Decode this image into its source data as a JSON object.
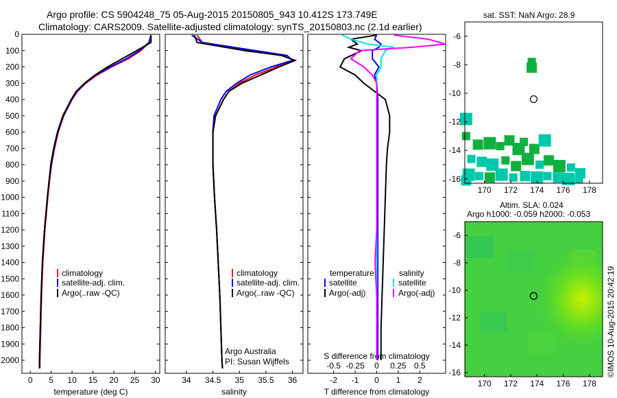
{
  "header": {
    "line1": "Argo profile: CS 5904248_75 05-Aug-2015 20150805_943 10.412S 173.749E",
    "line2": "Climatology: CARS2009. Satellite-adjusted climatology: synTS_20150803.nc (2.1d earlier)"
  },
  "colors": {
    "climatology": "#ff0000",
    "satellite": "#0000ff",
    "argo": "#000000",
    "sal_satellite": "#00e5ee",
    "sal_argo": "#ff00ff",
    "sst_teal": "#00c8aa",
    "sst_green": "#10b040",
    "sla_green": "#44d040"
  },
  "legend_temp": [
    "climatology",
    "satellite-adj. clim.",
    "Argo(..raw -QC)"
  ],
  "legend_sal": [
    "climatology",
    "satellite-adj. clim.",
    "Argo(..raw -QC)"
  ],
  "legend_diff": {
    "temp_head": "temperature",
    "sal_head": "salinity",
    "temp_items": [
      "satellite",
      "Argo(-adj)"
    ],
    "sal_items": [
      "satellite",
      "Argo(-adj)"
    ]
  },
  "credit": {
    "line1": "Argo Australia",
    "line2": "PI: Susan Wijffels"
  },
  "sst_title": "sat. SST: NaN Argo: 28.9",
  "sla_title1": "Altim. SLA: 0.024",
  "sla_title2": "Argo h1000: -0.059 h2000: -0.053",
  "copyright": "©IMOS 10-Aug-2015 20:42:19",
  "chart_data": [
    {
      "type": "line",
      "xlabel": "temperature (deg C)",
      "ylabel": "",
      "xlim": [
        -2,
        31
      ],
      "ylim": [
        2080,
        0
      ],
      "xticks": [
        "0",
        "5",
        "10",
        "15",
        "20",
        "25",
        "30"
      ],
      "yticks": [
        "0",
        "100",
        "200",
        "300",
        "400",
        "500",
        "600",
        "700",
        "800",
        "900",
        "1000",
        "1100",
        "1200",
        "1300",
        "1400",
        "1500",
        "1600",
        "1700",
        "1800",
        "1900",
        "2000"
      ],
      "depth": [
        5,
        50,
        100,
        150,
        200,
        250,
        300,
        350,
        400,
        500,
        600,
        700,
        800,
        900,
        1000,
        1200,
        1400,
        1600,
        1800,
        2000,
        2050
      ],
      "series": [
        {
          "name": "climatology",
          "values": [
            28.9,
            28.5,
            26.5,
            23.5,
            19.5,
            16.0,
            13.3,
            11.3,
            10.0,
            8.0,
            6.7,
            5.8,
            5.1,
            4.6,
            4.2,
            3.5,
            3.0,
            2.7,
            2.5,
            2.3,
            2.3
          ]
        },
        {
          "name": "satellite-adj. clim.",
          "values": [
            28.9,
            28.4,
            26.2,
            23.0,
            19.2,
            15.7,
            13.1,
            11.2,
            9.9,
            7.9,
            6.6,
            5.7,
            5.0,
            4.5,
            4.1,
            3.4,
            2.9,
            2.6,
            2.4,
            2.2,
            2.2
          ]
        },
        {
          "name": "Argo(..raw -QC)",
          "values": [
            28.9,
            28.9,
            25.5,
            22.0,
            18.5,
            15.5,
            13.0,
            11.0,
            9.8,
            7.8,
            6.5,
            5.6,
            4.9,
            4.5,
            4.1,
            3.4,
            2.9,
            2.6,
            2.4,
            2.2,
            2.2
          ]
        }
      ]
    },
    {
      "type": "line",
      "xlabel": "salinity",
      "xlim": [
        33.6,
        36.2
      ],
      "ylim": [
        2080,
        0
      ],
      "xticks": [
        "34",
        "34.5",
        "35",
        "35.5",
        "36"
      ],
      "depth": [
        5,
        50,
        100,
        130,
        160,
        200,
        250,
        300,
        350,
        400,
        500,
        600,
        700,
        800,
        1000,
        1200,
        1400,
        1600,
        1800,
        2000,
        2050
      ],
      "series": [
        {
          "name": "climatology",
          "values": [
            34.2,
            34.3,
            35.2,
            35.8,
            36.05,
            35.7,
            35.3,
            35.0,
            34.8,
            34.7,
            34.55,
            34.5,
            34.5,
            34.5,
            34.53,
            34.57,
            34.6,
            34.63,
            34.65,
            34.67,
            34.68
          ]
        },
        {
          "name": "satellite-adj. clim.",
          "values": [
            34.1,
            34.3,
            35.3,
            35.9,
            36.0,
            35.6,
            35.2,
            34.95,
            34.75,
            34.65,
            34.52,
            34.5,
            34.5,
            34.5,
            34.53,
            34.57,
            34.6,
            34.63,
            34.65,
            34.67,
            34.68
          ]
        },
        {
          "name": "Argo(..raw -QC)",
          "values": [
            34.15,
            34.2,
            35.1,
            35.8,
            36.05,
            35.75,
            35.4,
            35.05,
            34.8,
            34.7,
            34.55,
            34.5,
            34.5,
            34.5,
            34.53,
            34.57,
            34.6,
            34.63,
            34.65,
            34.67,
            34.68
          ]
        }
      ]
    },
    {
      "type": "line",
      "xlabel": "T difference from climatology",
      "toplabel": "S difference from climatology",
      "xlim": [
        -3.2,
        3.2
      ],
      "ylim": [
        2080,
        0
      ],
      "xticks": [
        "-2",
        "-1",
        "0",
        "1",
        "2"
      ],
      "sticks": [
        "-0.5",
        "-0.25",
        "0",
        "0.25",
        "0.5"
      ],
      "depth": [
        5,
        30,
        60,
        80,
        100,
        150,
        200,
        250,
        300,
        400,
        500,
        600,
        700,
        800,
        1000,
        1200,
        1400,
        1600,
        1800,
        2000
      ],
      "series": [
        {
          "name": "temperature satellite",
          "values": [
            0.0,
            -0.1,
            0.2,
            0.1,
            -0.2,
            -0.2,
            0.1,
            -0.1,
            0.0,
            0.05,
            0.05,
            0.05,
            0.05,
            0.05,
            0.05,
            0.05,
            0.05,
            0.05,
            0.05,
            0.05
          ]
        },
        {
          "name": "temperature Argo(-adj)",
          "values": [
            0.0,
            -1.2,
            -0.9,
            -1.3,
            -0.7,
            -1.5,
            -1.7,
            -1.0,
            -0.6,
            0.4,
            0.6,
            0.6,
            0.5,
            0.45,
            0.4,
            0.35,
            0.3,
            0.25,
            0.2,
            0.2
          ]
        },
        {
          "name": "salinity satellite",
          "values": [
            -0.4,
            -0.3,
            -0.1,
            0.2,
            0.1,
            0.05,
            0.05,
            0.0,
            0.0,
            0.0,
            0.0,
            0.0,
            0.0,
            0.0,
            0.0,
            0.0,
            0.0,
            0.0,
            0.0,
            0.0
          ]
        },
        {
          "name": "salinity Argo(-adj)",
          "values": [
            0.2,
            0.6,
            0.8,
            0.4,
            -0.2,
            -0.3,
            -0.15,
            -0.05,
            0.0,
            0.0,
            0.0,
            0.0,
            0.0,
            0.0,
            0.0,
            0.0,
            -0.02,
            0.0,
            0.0,
            0.0
          ]
        }
      ]
    },
    {
      "type": "heatmap",
      "title": "sat. SST: NaN Argo: 28.9",
      "xlim": [
        168.5,
        179
      ],
      "ylim": [
        -16.3,
        -5
      ],
      "xticks": [
        "170",
        "172",
        "174",
        "176",
        "178"
      ],
      "yticks": [
        "-6",
        "-8",
        "-10",
        "-12",
        "-14",
        "-16"
      ],
      "argo_position": [
        173.749,
        -10.412
      ]
    },
    {
      "type": "heatmap",
      "title": "Altim. SLA: 0.024",
      "xlim": [
        168.5,
        179
      ],
      "ylim": [
        -16.3,
        -5
      ],
      "xticks": [
        "170",
        "172",
        "174",
        "176",
        "178"
      ],
      "yticks": [
        "-6",
        "-8",
        "-10",
        "-12",
        "-14",
        "-16"
      ],
      "argo_position": [
        173.749,
        -10.412
      ]
    }
  ]
}
